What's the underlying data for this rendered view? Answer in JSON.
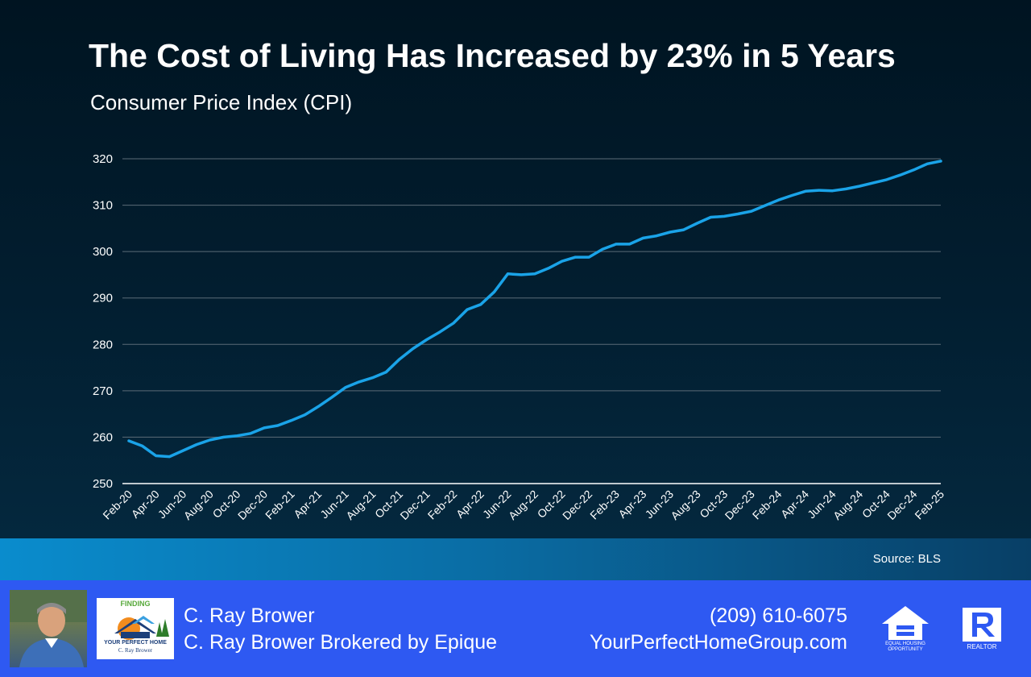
{
  "header": {
    "title": "The Cost of Living Has Increased by 23% in 5 Years",
    "subtitle": "Consumer Price Index (CPI)"
  },
  "source": "Source: BLS",
  "chart_data": {
    "type": "line",
    "title": "The Cost of Living Has Increased by 23% in 5 Years",
    "subtitle": "Consumer Price Index (CPI)",
    "xlabel": "",
    "ylabel": "",
    "ylim": [
      250,
      320
    ],
    "yticks": [
      250,
      260,
      270,
      280,
      290,
      300,
      310,
      320
    ],
    "grid": true,
    "legend": "none",
    "line_color": "#1aa3e8",
    "x_tick_labels": [
      "Feb-20",
      "Apr-20",
      "Jun-20",
      "Aug-20",
      "Oct-20",
      "Dec-20",
      "Feb-21",
      "Apr-21",
      "Jun-21",
      "Aug-21",
      "Oct-21",
      "Dec-21",
      "Feb-22",
      "Apr-22",
      "Jun-22",
      "Aug-22",
      "Oct-22",
      "Dec-22",
      "Feb-23",
      "Apr-23",
      "Jun-23",
      "Aug-23",
      "Oct-23",
      "Dec-23",
      "Feb-24",
      "Apr-24",
      "Jun-24",
      "Aug-24",
      "Oct-24",
      "Dec-24",
      "Feb-25"
    ],
    "x": [
      "Feb-20",
      "Mar-20",
      "Apr-20",
      "May-20",
      "Jun-20",
      "Jul-20",
      "Aug-20",
      "Sep-20",
      "Oct-20",
      "Nov-20",
      "Dec-20",
      "Jan-21",
      "Feb-21",
      "Mar-21",
      "Apr-21",
      "May-21",
      "Jun-21",
      "Jul-21",
      "Aug-21",
      "Sep-21",
      "Oct-21",
      "Nov-21",
      "Dec-21",
      "Jan-22",
      "Feb-22",
      "Mar-22",
      "Apr-22",
      "May-22",
      "Jun-22",
      "Jul-22",
      "Aug-22",
      "Sep-22",
      "Oct-22",
      "Nov-22",
      "Dec-22",
      "Jan-23",
      "Feb-23",
      "Mar-23",
      "Apr-23",
      "May-23",
      "Jun-23",
      "Jul-23",
      "Aug-23",
      "Sep-23",
      "Oct-23",
      "Nov-23",
      "Dec-23",
      "Jan-24",
      "Feb-24",
      "Mar-24",
      "Apr-24",
      "May-24",
      "Jun-24",
      "Jul-24",
      "Aug-24",
      "Sep-24",
      "Oct-24",
      "Nov-24",
      "Dec-24",
      "Jan-25",
      "Feb-25"
    ],
    "values": [
      259.2,
      258.1,
      256.0,
      255.8,
      257.1,
      258.4,
      259.4,
      260.0,
      260.3,
      260.8,
      262.0,
      262.5,
      263.6,
      264.8,
      266.6,
      268.6,
      270.7,
      271.9,
      272.8,
      274.0,
      276.8,
      279.1,
      281.0,
      282.7,
      284.6,
      287.5,
      288.6,
      291.3,
      295.2,
      295.0,
      295.2,
      296.4,
      297.9,
      298.8,
      298.8,
      300.5,
      301.6,
      301.6,
      302.9,
      303.4,
      304.2,
      304.7,
      306.1,
      307.4,
      307.6,
      308.1,
      308.7,
      309.9,
      311.1,
      312.1,
      313.0,
      313.2,
      313.1,
      313.5,
      314.1,
      314.8,
      315.5,
      316.5,
      317.6,
      318.9,
      319.5
    ]
  },
  "footer": {
    "agent_name": "C. Ray Brower",
    "brokerage": "C. Ray Brower Brokered by Epique",
    "phone": "(209) 610-6075",
    "website": "YourPerfectHomeGroup.com",
    "logo_top": "FINDING",
    "logo_mid": "YOUR PERFECT HOME",
    "logo_name": "C. Ray Brower",
    "eho_text": "EQUAL HOUSING OPPORTUNITY",
    "realtor_text": "REALTOR"
  }
}
